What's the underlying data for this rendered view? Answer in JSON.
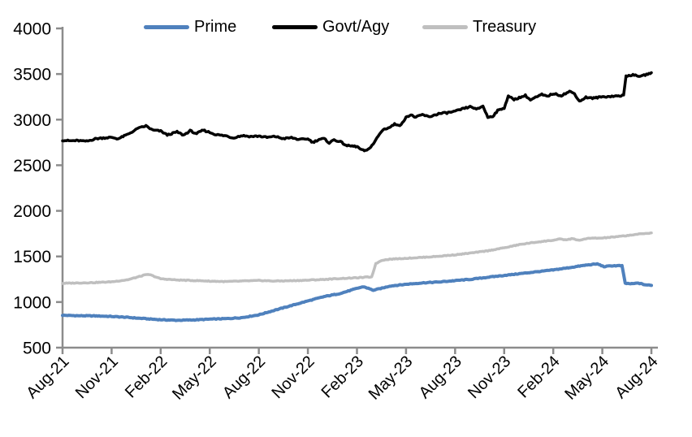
{
  "chart_data": {
    "type": "line",
    "title": "",
    "legend_position": "top",
    "grid": false,
    "axis_color": "#8C8C8C",
    "text_color": "#000000",
    "background": "#FFFFFF",
    "y_axis": {
      "min": 500,
      "max": 4000,
      "tick_step": 500,
      "tick_labels": [
        "4000",
        "3500",
        "3000",
        "2500",
        "2000",
        "1500",
        "1000",
        "500"
      ]
    },
    "x_axis": {
      "unit": "months since Aug-21",
      "min": 0,
      "max": 36,
      "tick_months": [
        0,
        3,
        6,
        9,
        12,
        15,
        18,
        21,
        24,
        27,
        30,
        33,
        36
      ],
      "tick_labels": [
        "Aug-21",
        "Nov-21",
        "Feb-22",
        "May-22",
        "Aug-22",
        "Nov-22",
        "Feb-23",
        "May-23",
        "Aug-23",
        "Nov-23",
        "Feb-24",
        "May-24",
        "Aug-24"
      ],
      "label_rotation_deg": -45
    },
    "series": [
      {
        "name": "Prime",
        "color": "#4F81BD",
        "points": [
          [
            0,
            855
          ],
          [
            1,
            850
          ],
          [
            2,
            848
          ],
          [
            3,
            842
          ],
          [
            4,
            832
          ],
          [
            5,
            818
          ],
          [
            6,
            806
          ],
          [
            7,
            800
          ],
          [
            8,
            804
          ],
          [
            9,
            812
          ],
          [
            10,
            818
          ],
          [
            11,
            830
          ],
          [
            12,
            860
          ],
          [
            13,
            912
          ],
          [
            14,
            962
          ],
          [
            15,
            1012
          ],
          [
            16,
            1060
          ],
          [
            17,
            1095
          ],
          [
            18,
            1150
          ],
          [
            18.4,
            1168
          ],
          [
            19,
            1130
          ],
          [
            19.6,
            1155
          ],
          [
            20,
            1175
          ],
          [
            21,
            1195
          ],
          [
            22,
            1210
          ],
          [
            23,
            1220
          ],
          [
            24,
            1235
          ],
          [
            25,
            1250
          ],
          [
            26,
            1272
          ],
          [
            27,
            1292
          ],
          [
            28,
            1312
          ],
          [
            29,
            1332
          ],
          [
            30,
            1352
          ],
          [
            31,
            1378
          ],
          [
            32,
            1405
          ],
          [
            32.7,
            1418
          ],
          [
            33.1,
            1388
          ],
          [
            33.6,
            1398
          ],
          [
            34.2,
            1398
          ],
          [
            34.4,
            1205
          ],
          [
            34.8,
            1200
          ],
          [
            35.2,
            1208
          ],
          [
            35.6,
            1190
          ],
          [
            36,
            1182
          ]
        ]
      },
      {
        "name": "Govt/Agy",
        "color": "#000000",
        "points": [
          [
            0,
            2775
          ],
          [
            0.4,
            2768
          ],
          [
            1,
            2770
          ],
          [
            1.4,
            2758
          ],
          [
            2,
            2790
          ],
          [
            2.5,
            2800
          ],
          [
            3,
            2806
          ],
          [
            3.4,
            2790
          ],
          [
            4,
            2840
          ],
          [
            4.6,
            2902
          ],
          [
            5.1,
            2932
          ],
          [
            5.5,
            2885
          ],
          [
            6,
            2875
          ],
          [
            6.4,
            2832
          ],
          [
            7,
            2865
          ],
          [
            7.4,
            2830
          ],
          [
            7.8,
            2878
          ],
          [
            8.2,
            2848
          ],
          [
            8.6,
            2885
          ],
          [
            9,
            2860
          ],
          [
            9.4,
            2835
          ],
          [
            10,
            2822
          ],
          [
            10.4,
            2800
          ],
          [
            11,
            2825
          ],
          [
            11.5,
            2815
          ],
          [
            12,
            2820
          ],
          [
            12.5,
            2805
          ],
          [
            13,
            2815
          ],
          [
            13.5,
            2792
          ],
          [
            14,
            2802
          ],
          [
            14.5,
            2780
          ],
          [
            15,
            2792
          ],
          [
            15.3,
            2750
          ],
          [
            15.7,
            2785
          ],
          [
            16,
            2790
          ],
          [
            16.3,
            2745
          ],
          [
            16.6,
            2780
          ],
          [
            17,
            2755
          ],
          [
            17.4,
            2715
          ],
          [
            18,
            2705
          ],
          [
            18.3,
            2665
          ],
          [
            18.6,
            2658
          ],
          [
            19,
            2735
          ],
          [
            19.3,
            2820
          ],
          [
            19.6,
            2892
          ],
          [
            20,
            2915
          ],
          [
            20.3,
            2950
          ],
          [
            20.7,
            2940
          ],
          [
            21,
            3030
          ],
          [
            21.3,
            3050
          ],
          [
            21.6,
            3025
          ],
          [
            22,
            3055
          ],
          [
            22.4,
            3030
          ],
          [
            23,
            3065
          ],
          [
            23.5,
            3075
          ],
          [
            24,
            3090
          ],
          [
            24.5,
            3120
          ],
          [
            25,
            3145
          ],
          [
            25.3,
            3110
          ],
          [
            25.7,
            3150
          ],
          [
            26,
            3025
          ],
          [
            26.3,
            3038
          ],
          [
            26.6,
            3098
          ],
          [
            27,
            3130
          ],
          [
            27.25,
            3255
          ],
          [
            27.6,
            3222
          ],
          [
            28,
            3245
          ],
          [
            28.3,
            3265
          ],
          [
            28.6,
            3215
          ],
          [
            29,
            3250
          ],
          [
            29.3,
            3275
          ],
          [
            29.6,
            3255
          ],
          [
            30,
            3285
          ],
          [
            30.5,
            3265
          ],
          [
            31,
            3308
          ],
          [
            31.3,
            3285
          ],
          [
            31.6,
            3200
          ],
          [
            32,
            3245
          ],
          [
            32.4,
            3235
          ],
          [
            33,
            3250
          ],
          [
            33.5,
            3255
          ],
          [
            34,
            3260
          ],
          [
            34.3,
            3265
          ],
          [
            34.45,
            3478
          ],
          [
            34.8,
            3490
          ],
          [
            35.1,
            3482
          ],
          [
            35.4,
            3475
          ],
          [
            35.7,
            3495
          ],
          [
            36,
            3515
          ]
        ]
      },
      {
        "name": "Treasury",
        "color": "#BFBFBF",
        "points": [
          [
            0,
            1205
          ],
          [
            1,
            1210
          ],
          [
            2,
            1214
          ],
          [
            3,
            1222
          ],
          [
            4,
            1245
          ],
          [
            5,
            1295
          ],
          [
            5.3,
            1302
          ],
          [
            6,
            1255
          ],
          [
            7,
            1242
          ],
          [
            8,
            1236
          ],
          [
            9,
            1230
          ],
          [
            10,
            1224
          ],
          [
            11,
            1230
          ],
          [
            12,
            1236
          ],
          [
            13,
            1230
          ],
          [
            14,
            1234
          ],
          [
            15,
            1240
          ],
          [
            16,
            1248
          ],
          [
            17,
            1258
          ],
          [
            18,
            1266
          ],
          [
            18.9,
            1276
          ],
          [
            19.15,
            1420
          ],
          [
            19.5,
            1458
          ],
          [
            20,
            1470
          ],
          [
            21,
            1480
          ],
          [
            22,
            1490
          ],
          [
            23,
            1502
          ],
          [
            24,
            1518
          ],
          [
            25,
            1538
          ],
          [
            26,
            1562
          ],
          [
            27,
            1595
          ],
          [
            28,
            1632
          ],
          [
            29,
            1658
          ],
          [
            30,
            1678
          ],
          [
            30.4,
            1690
          ],
          [
            30.8,
            1682
          ],
          [
            31.2,
            1696
          ],
          [
            31.6,
            1674
          ],
          [
            32,
            1696
          ],
          [
            32.5,
            1700
          ],
          [
            33,
            1702
          ],
          [
            34,
            1718
          ],
          [
            35,
            1740
          ],
          [
            36,
            1758
          ]
        ]
      }
    ]
  }
}
